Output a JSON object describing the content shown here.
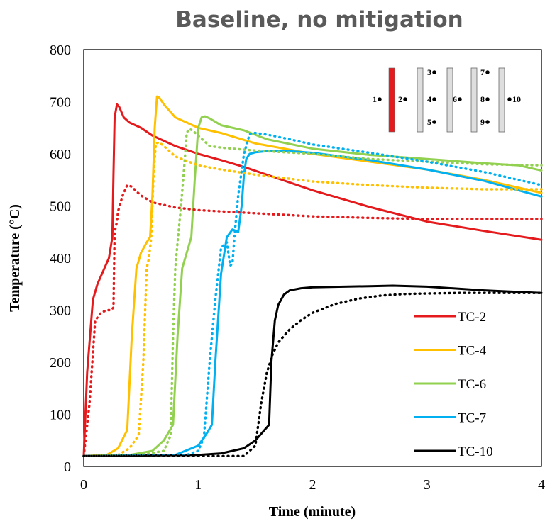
{
  "chart_data": {
    "type": "line",
    "title": "Baseline, no mitigation",
    "xlabel": "Time (minute)",
    "ylabel": "Temperature (°C)",
    "xlim": [
      0,
      4
    ],
    "ylim": [
      0,
      800
    ],
    "xticks": [
      "0",
      "1",
      "2",
      "3",
      "4"
    ],
    "yticks": [
      "0",
      "100",
      "200",
      "300",
      "400",
      "500",
      "600",
      "700",
      "800"
    ],
    "grid": false,
    "legend_position": "bottom-right",
    "legend": [
      "TC-2",
      "TC-4",
      "TC-6",
      "TC-7",
      "TC-10"
    ],
    "inset_labels": [
      "1",
      "2",
      "3",
      "4",
      "5",
      "6",
      "7",
      "8",
      "9",
      "10"
    ],
    "series": [
      {
        "name": "TC-2",
        "color": "#e41a1c",
        "dash": "solid",
        "x": [
          0,
          0.03,
          0.08,
          0.12,
          0.18,
          0.22,
          0.25,
          0.26,
          0.27,
          0.29,
          0.31,
          0.35,
          0.4,
          0.5,
          0.6,
          0.8,
          1.0,
          1.2,
          1.4,
          1.6,
          2.0,
          2.5,
          3.0,
          3.5,
          4.0
        ],
        "y": [
          20,
          180,
          320,
          350,
          380,
          400,
          440,
          560,
          670,
          695,
          690,
          670,
          660,
          650,
          635,
          615,
          600,
          588,
          575,
          560,
          530,
          498,
          470,
          452,
          435
        ]
      },
      {
        "name": "TC-4",
        "color": "#ffc000",
        "dash": "solid",
        "x": [
          0,
          0.2,
          0.3,
          0.38,
          0.42,
          0.46,
          0.5,
          0.55,
          0.58,
          0.6,
          0.62,
          0.64,
          0.66,
          0.7,
          0.8,
          1.0,
          1.2,
          1.5,
          2.0,
          2.5,
          3.0,
          3.5,
          4.0
        ],
        "y": [
          20,
          22,
          35,
          70,
          250,
          380,
          410,
          430,
          440,
          520,
          650,
          710,
          708,
          695,
          670,
          650,
          640,
          620,
          600,
          585,
          570,
          550,
          525
        ]
      },
      {
        "name": "TC-6",
        "color": "#92d050",
        "dash": "solid",
        "x": [
          0,
          0.4,
          0.6,
          0.7,
          0.78,
          0.82,
          0.86,
          0.9,
          0.94,
          0.97,
          1.0,
          1.03,
          1.06,
          1.1,
          1.2,
          1.4,
          1.6,
          2.0,
          2.5,
          3.0,
          3.5,
          3.8,
          4.0
        ],
        "y": [
          20,
          22,
          30,
          50,
          80,
          250,
          380,
          410,
          440,
          550,
          650,
          670,
          672,
          668,
          655,
          645,
          628,
          610,
          598,
          590,
          582,
          578,
          568
        ]
      },
      {
        "name": "TC-7",
        "color": "#00b0f0",
        "dash": "solid",
        "x": [
          0,
          0.8,
          1.0,
          1.08,
          1.12,
          1.15,
          1.2,
          1.25,
          1.3,
          1.35,
          1.38,
          1.4,
          1.42,
          1.45,
          1.5,
          1.6,
          1.8,
          2.0,
          2.5,
          3.0,
          3.5,
          4.0
        ],
        "y": [
          20,
          22,
          40,
          65,
          80,
          200,
          370,
          440,
          455,
          450,
          500,
          560,
          590,
          600,
          603,
          605,
          605,
          602,
          588,
          570,
          548,
          518
        ]
      },
      {
        "name": "TC-10",
        "color": "#000000",
        "dash": "solid",
        "x": [
          0,
          1.0,
          1.2,
          1.4,
          1.5,
          1.58,
          1.62,
          1.64,
          1.67,
          1.7,
          1.75,
          1.8,
          1.9,
          2.0,
          2.5,
          2.7,
          3.0,
          3.5,
          4.0
        ],
        "y": [
          20,
          22,
          25,
          35,
          50,
          70,
          80,
          200,
          280,
          310,
          330,
          338,
          342,
          344,
          346,
          347,
          345,
          338,
          333
        ]
      },
      {
        "name": "",
        "color": "#e41a1c",
        "dash": "dotted",
        "x": [
          0,
          0.05,
          0.1,
          0.15,
          0.2,
          0.24,
          0.26,
          0.27,
          0.28,
          0.29,
          0.3,
          0.34,
          0.38,
          0.42,
          0.45,
          0.5,
          0.6,
          0.8,
          1.0,
          1.5,
          2.0,
          2.5,
          3.0,
          3.5,
          4.0
        ],
        "y": [
          20,
          120,
          280,
          295,
          300,
          300,
          305,
          450,
          460,
          470,
          490,
          520,
          540,
          537,
          530,
          520,
          507,
          497,
          492,
          486,
          480,
          477,
          475,
          475,
          475
        ]
      },
      {
        "name": "",
        "color": "#ffc000",
        "dash": "dotted",
        "x": [
          0,
          0.3,
          0.4,
          0.48,
          0.52,
          0.55,
          0.57,
          0.59,
          0.61,
          0.63,
          0.66,
          0.7,
          0.8,
          1.0,
          1.2,
          1.5,
          2.0,
          2.5,
          3.0,
          3.5,
          4.0
        ],
        "y": [
          20,
          22,
          35,
          60,
          200,
          380,
          400,
          440,
          560,
          620,
          622,
          615,
          595,
          578,
          570,
          560,
          547,
          540,
          535,
          532,
          532
        ]
      },
      {
        "name": "",
        "color": "#92d050",
        "dash": "dotted",
        "x": [
          0,
          0.5,
          0.7,
          0.76,
          0.78,
          0.8,
          0.82,
          0.85,
          0.88,
          0.9,
          0.92,
          0.95,
          1.0,
          1.1,
          1.2,
          1.4,
          1.6,
          2.0,
          2.5,
          3.0,
          3.5,
          4.0
        ],
        "y": [
          20,
          22,
          30,
          60,
          250,
          380,
          430,
          500,
          580,
          640,
          648,
          645,
          635,
          615,
          612,
          608,
          605,
          600,
          590,
          585,
          580,
          578
        ]
      },
      {
        "name": "",
        "color": "#00b0f0",
        "dash": "dotted",
        "x": [
          0,
          0.9,
          1.0,
          1.05,
          1.1,
          1.15,
          1.2,
          1.25,
          1.28,
          1.3,
          1.32,
          1.35,
          1.4,
          1.45,
          1.48,
          1.5,
          1.6,
          1.8,
          2.0,
          2.5,
          3.0,
          3.5,
          4.0
        ],
        "y": [
          20,
          22,
          30,
          55,
          200,
          320,
          420,
          430,
          385,
          390,
          450,
          520,
          600,
          638,
          640,
          640,
          637,
          628,
          618,
          602,
          585,
          565,
          540
        ]
      },
      {
        "name": "",
        "color": "#000000",
        "dash": "dotted",
        "x": [
          0,
          1.4,
          1.5,
          1.55,
          1.6,
          1.65,
          1.7,
          1.8,
          1.9,
          2.0,
          2.2,
          2.4,
          2.6,
          2.8,
          3.0,
          3.3,
          3.6,
          4.0
        ],
        "y": [
          20,
          20,
          40,
          120,
          180,
          215,
          238,
          263,
          281,
          295,
          312,
          322,
          328,
          331,
          332,
          333,
          333,
          333
        ]
      }
    ]
  }
}
